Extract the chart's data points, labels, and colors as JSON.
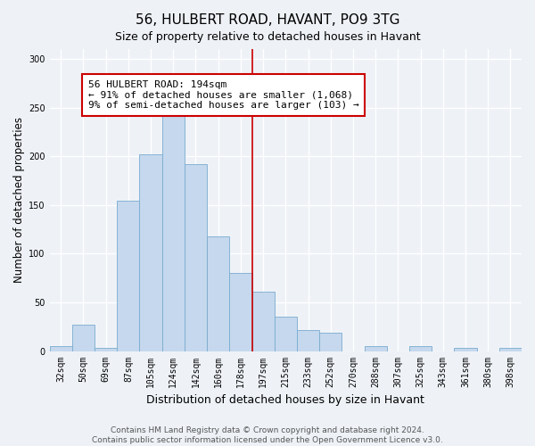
{
  "title": "56, HULBERT ROAD, HAVANT, PO9 3TG",
  "subtitle": "Size of property relative to detached houses in Havant",
  "xlabel": "Distribution of detached houses by size in Havant",
  "ylabel": "Number of detached properties",
  "bar_labels": [
    "32sqm",
    "50sqm",
    "69sqm",
    "87sqm",
    "105sqm",
    "124sqm",
    "142sqm",
    "160sqm",
    "178sqm",
    "197sqm",
    "215sqm",
    "233sqm",
    "252sqm",
    "270sqm",
    "288sqm",
    "307sqm",
    "325sqm",
    "343sqm",
    "361sqm",
    "380sqm",
    "398sqm"
  ],
  "bar_values": [
    5,
    27,
    3,
    154,
    202,
    250,
    192,
    118,
    80,
    61,
    35,
    22,
    19,
    0,
    5,
    0,
    5,
    0,
    3,
    0,
    3
  ],
  "bar_color": "#c5d8ed",
  "bar_edge_color": "#7aabcf",
  "vline_x": 9.0,
  "vline_color": "#cc0000",
  "annotation_text": "56 HULBERT ROAD: 194sqm\n← 91% of detached houses are smaller (1,068)\n9% of semi-detached houses are larger (103) →",
  "annotation_box_color": "#ffffff",
  "annotation_box_edge": "#cc0000",
  "ylim": [
    0,
    310
  ],
  "yticks": [
    0,
    50,
    100,
    150,
    200,
    250,
    300
  ],
  "footer_line1": "Contains HM Land Registry data © Crown copyright and database right 2024.",
  "footer_line2": "Contains public sector information licensed under the Open Government Licence v3.0.",
  "background_color": "#eef2f7",
  "title_fontsize": 11,
  "subtitle_fontsize": 9,
  "axis_label_fontsize": 8.5,
  "tick_fontsize": 7,
  "annotation_fontsize": 8,
  "footer_fontsize": 6.5
}
